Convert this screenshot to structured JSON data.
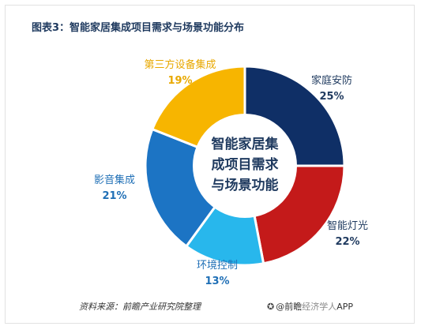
{
  "header": {
    "title": "图表3：智能家居集成项目需求与场景功能分布"
  },
  "chart_data": {
    "type": "pie",
    "donut": true,
    "center_label": [
      "智能家居集",
      "成项目需求",
      "与场景功能"
    ],
    "series": [
      {
        "name": "家庭安防",
        "value": 25,
        "display": "25%",
        "color": "#0f2f66",
        "label_color": "#1f3a5f"
      },
      {
        "name": "智能灯光",
        "value": 22,
        "display": "22%",
        "color": "#c41a1a",
        "label_color": "#1f3a5f"
      },
      {
        "name": "环境控制",
        "value": 13,
        "display": "13%",
        "color": "#28b7ec",
        "label_color": "#1f6fb6"
      },
      {
        "name": "影音集成",
        "value": 21,
        "display": "21%",
        "color": "#1c74c4",
        "label_color": "#1f6fb6"
      },
      {
        "name": "第三方设备集成",
        "value": 19,
        "display": "19%",
        "color": "#f7b500",
        "label_color": "#e8a800"
      }
    ]
  },
  "footer": {
    "source": "资料来源：前瞻产业研究院整理",
    "credit_icon": "wechat-icon",
    "credit_prefix": "@前瞻",
    "credit_muted": "经济学人",
    "credit_suffix": "APP"
  }
}
